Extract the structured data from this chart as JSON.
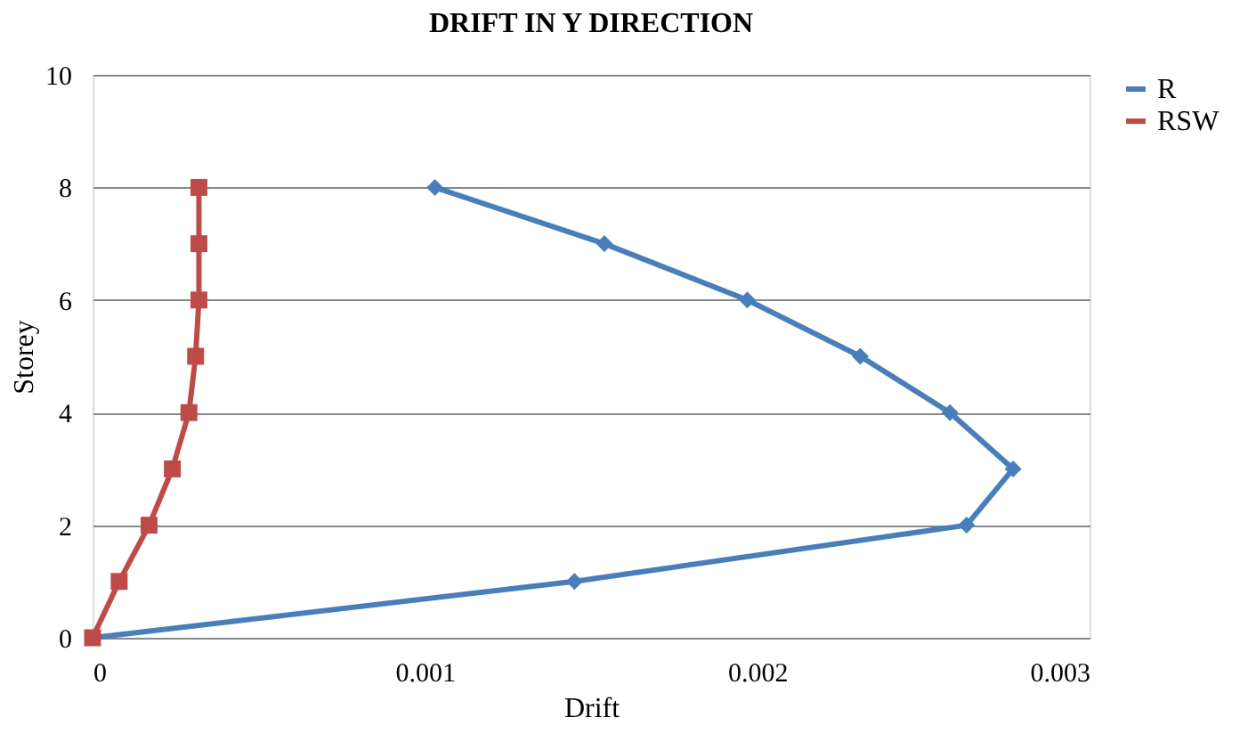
{
  "chart_data": {
    "type": "line",
    "title": "DRIFT IN Y DIRECTION",
    "xlabel": "Drift",
    "ylabel": "Storey",
    "xlim": [
      0,
      0.003
    ],
    "xticks": [
      0,
      0.001,
      0.002,
      0.003
    ],
    "ylim": [
      0,
      10
    ],
    "yticks": [
      0,
      2,
      4,
      6,
      8,
      10
    ],
    "grid": "y",
    "legend": "right",
    "line_style": "solid",
    "series": [
      {
        "name": "R",
        "color": "#4a7ebb",
        "marker": "diamond",
        "x": [
          0,
          0.00145,
          0.00263,
          0.00277,
          0.00258,
          0.00231,
          0.00197,
          0.00154,
          0.00103
        ],
        "values": [
          0,
          1,
          2,
          3,
          4,
          5,
          6,
          7,
          8
        ]
      },
      {
        "name": "RSW",
        "color": "#be4b48",
        "marker": "square",
        "x": [
          0,
          8e-05,
          0.00017,
          0.00024,
          0.00029,
          0.00031,
          0.00032,
          0.00032,
          0.00032
        ],
        "values": [
          0,
          1,
          2,
          3,
          4,
          5,
          6,
          7,
          8
        ]
      }
    ]
  }
}
